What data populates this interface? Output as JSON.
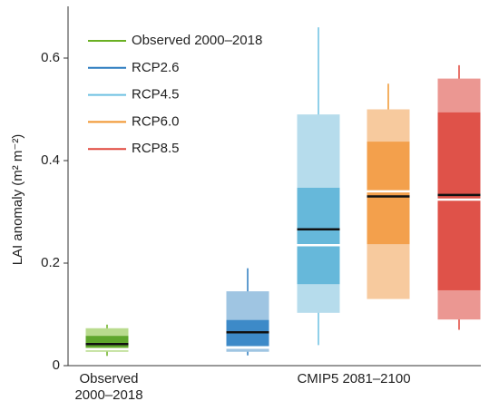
{
  "chart_data": {
    "type": "box",
    "ylabel": "LAI anomaly (m² m⁻²)",
    "ylim": [
      0,
      0.7
    ],
    "yticks": [
      0,
      0.2,
      0.4,
      0.6
    ],
    "categories": [
      "Observed\n2000–2018",
      "CMIP5 2081–2100"
    ],
    "series": [
      {
        "name": "Observed 2000–2018",
        "color": "#6ab023",
        "light": "#b9db8e",
        "dark": "#5fa62d",
        "whisker_low": 0.019,
        "whisker_high": 0.08,
        "outer_low": 0.027,
        "outer_high": 0.073,
        "inner_low": 0.035,
        "inner_high": 0.058,
        "median": 0.042,
        "mean": 0.032
      },
      {
        "name": "RCP2.6",
        "color": "#2b7bbf",
        "light": "#9fc5e2",
        "dark": "#3d8ac8",
        "whisker_low": 0.02,
        "whisker_high": 0.19,
        "outer_low": 0.027,
        "outer_high": 0.145,
        "inner_low": 0.039,
        "inner_high": 0.089,
        "median": 0.065,
        "mean": 0.035
      },
      {
        "name": "RCP4.5",
        "color": "#6cc0e2",
        "light": "#b6dcec",
        "dark": "#66b8da",
        "whisker_low": 0.04,
        "whisker_high": 0.66,
        "outer_low": 0.103,
        "outer_high": 0.49,
        "inner_low": 0.159,
        "inner_high": 0.347,
        "median": 0.266,
        "mean": 0.235
      },
      {
        "name": "RCP6.0",
        "color": "#f0952e",
        "light": "#f7ca9e",
        "dark": "#f3a04c",
        "whisker_low": 0.13,
        "whisker_high": 0.55,
        "outer_low": 0.13,
        "outer_high": 0.5,
        "inner_low": 0.237,
        "inner_high": 0.437,
        "median": 0.33,
        "mean": 0.34
      },
      {
        "name": "RCP8.5",
        "color": "#e0473c",
        "light": "#eb9792",
        "dark": "#df5249",
        "whisker_low": 0.07,
        "whisker_high": 0.586,
        "outer_low": 0.09,
        "outer_high": 0.56,
        "inner_low": 0.147,
        "inner_high": 0.494,
        "median": 0.333,
        "mean": 0.324
      }
    ]
  }
}
